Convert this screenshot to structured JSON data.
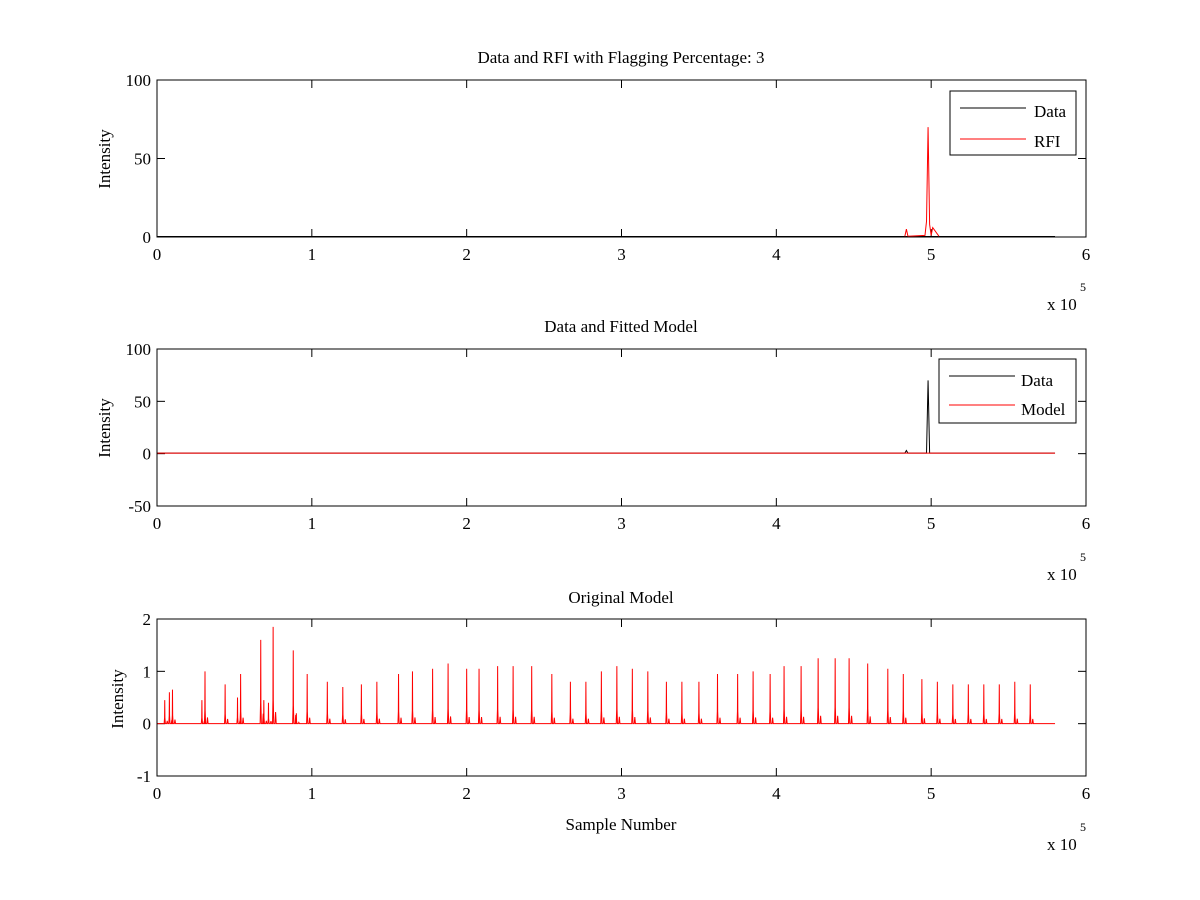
{
  "figure": {
    "background": "#ffffff",
    "colors": {
      "data": "#000000",
      "rfi": "#ff0000",
      "model": "#ff0000"
    }
  },
  "chart_data": [
    {
      "type": "line",
      "title": "Data and RFI with Flagging Percentage: 3",
      "xlabel": "",
      "ylabel": "Intensity",
      "xlim": [
        0,
        6
      ],
      "ylim": [
        0,
        100
      ],
      "xticks": [
        "0",
        "1",
        "2",
        "3",
        "4",
        "5",
        "6"
      ],
      "yticks": [
        "0",
        "50",
        "100"
      ],
      "x_multiplier": {
        "base": "x 10",
        "exponent": "5"
      },
      "legend": {
        "position": "top-right",
        "entries": [
          "Data",
          "RFI"
        ]
      },
      "series": [
        {
          "name": "Data",
          "color": "#000000",
          "x": [
            0.0,
            5.8
          ],
          "y": [
            0.3,
            0.3
          ]
        },
        {
          "name": "RFI",
          "color": "#ff0000",
          "x": [
            4.83,
            4.84,
            4.85,
            4.96,
            4.97,
            4.98,
            4.99,
            5.0,
            5.01,
            5.05
          ],
          "y": [
            0.5,
            5,
            0.5,
            1,
            10,
            70,
            8,
            1,
            6,
            0.5
          ]
        }
      ]
    },
    {
      "type": "line",
      "title": "Data and Fitted Model",
      "xlabel": "",
      "ylabel": "Intensity",
      "xlim": [
        0,
        6
      ],
      "ylim": [
        -50,
        100
      ],
      "xticks": [
        "0",
        "1",
        "2",
        "3",
        "4",
        "5",
        "6"
      ],
      "yticks": [
        "-50",
        "0",
        "50",
        "100"
      ],
      "x_multiplier": {
        "base": "x 10",
        "exponent": "5"
      },
      "legend": {
        "position": "top-right",
        "entries": [
          "Data",
          "Model"
        ]
      },
      "series": [
        {
          "name": "Data",
          "color": "#000000",
          "x": [
            0.0,
            4.83,
            4.84,
            4.85,
            4.97,
            4.98,
            4.99,
            5.8
          ],
          "y": [
            0.5,
            0.5,
            3,
            0.5,
            0.5,
            70,
            0.5,
            0.5
          ]
        },
        {
          "name": "Model",
          "color": "#ff0000",
          "x": [
            0.0,
            5.8
          ],
          "y": [
            0.5,
            0.5
          ]
        }
      ]
    },
    {
      "type": "line",
      "title": "Original Model",
      "xlabel": "Sample Number",
      "ylabel": "Intensity",
      "xlim": [
        0,
        6
      ],
      "ylim": [
        -1,
        2
      ],
      "xticks": [
        "0",
        "1",
        "2",
        "3",
        "4",
        "5",
        "6"
      ],
      "yticks": [
        "-1",
        "0",
        "1",
        "2"
      ],
      "x_multiplier": {
        "base": "x 10",
        "exponent": "5"
      },
      "x_end": 5.8,
      "series": [
        {
          "name": "",
          "color": "#ff0000",
          "peaks_x": [
            0.05,
            0.08,
            0.1,
            0.29,
            0.31,
            0.44,
            0.52,
            0.54,
            0.67,
            0.69,
            0.72,
            0.75,
            0.88,
            0.9,
            0.97,
            1.1,
            1.2,
            1.32,
            1.42,
            1.56,
            1.65,
            1.78,
            1.88,
            2.0,
            2.08,
            2.2,
            2.3,
            2.42,
            2.55,
            2.67,
            2.77,
            2.87,
            2.97,
            3.07,
            3.17,
            3.29,
            3.39,
            3.5,
            3.62,
            3.75,
            3.85,
            3.96,
            4.05,
            4.16,
            4.27,
            4.38,
            4.47,
            4.59,
            4.72,
            4.82,
            4.94,
            5.04,
            5.14,
            5.24,
            5.34,
            5.44,
            5.54,
            5.64
          ],
          "peaks_y": [
            0.45,
            0.6,
            0.65,
            0.45,
            1.0,
            0.75,
            0.5,
            0.95,
            1.6,
            0.45,
            0.4,
            1.85,
            1.4,
            0.2,
            0.95,
            0.8,
            0.7,
            0.75,
            0.8,
            0.95,
            1.0,
            1.05,
            1.15,
            1.05,
            1.05,
            1.1,
            1.1,
            1.1,
            0.95,
            0.8,
            0.8,
            1.0,
            1.1,
            1.05,
            1.0,
            0.8,
            0.8,
            0.8,
            0.95,
            0.95,
            1.0,
            0.95,
            1.1,
            1.1,
            1.25,
            1.25,
            1.25,
            1.15,
            1.05,
            0.95,
            0.85,
            0.8,
            0.75,
            0.75,
            0.75,
            0.75,
            0.8,
            0.75
          ]
        }
      ]
    }
  ]
}
